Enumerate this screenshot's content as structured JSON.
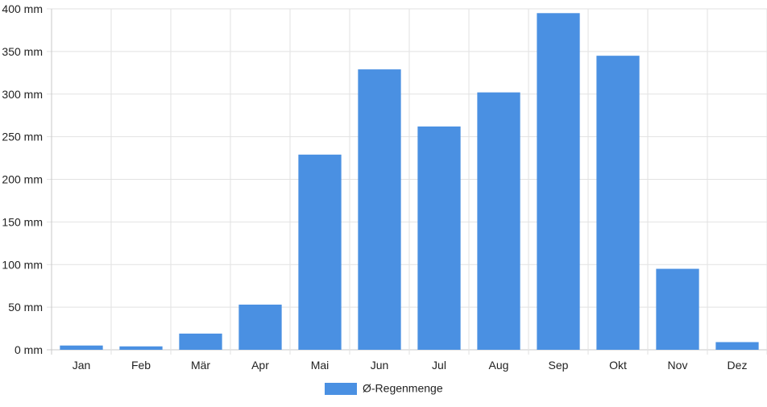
{
  "chart_data": {
    "type": "bar",
    "categories": [
      "Jan",
      "Feb",
      "Mär",
      "Apr",
      "Mai",
      "Jun",
      "Jul",
      "Aug",
      "Sep",
      "Okt",
      "Nov",
      "Dez"
    ],
    "series": [
      {
        "name": "Ø-Regenmenge",
        "values": [
          5,
          4,
          19,
          53,
          229,
          329,
          262,
          302,
          395,
          345,
          95,
          9
        ],
        "color": "#4a90e2"
      }
    ],
    "y_ticks": [
      "0 mm",
      "50 mm",
      "100 mm",
      "150 mm",
      "200 mm",
      "250 mm",
      "300 mm",
      "350 mm",
      "400 mm"
    ],
    "ylim": [
      0,
      400
    ],
    "y_tick_step": 50,
    "grid": true,
    "legend_position": "bottom-center"
  }
}
